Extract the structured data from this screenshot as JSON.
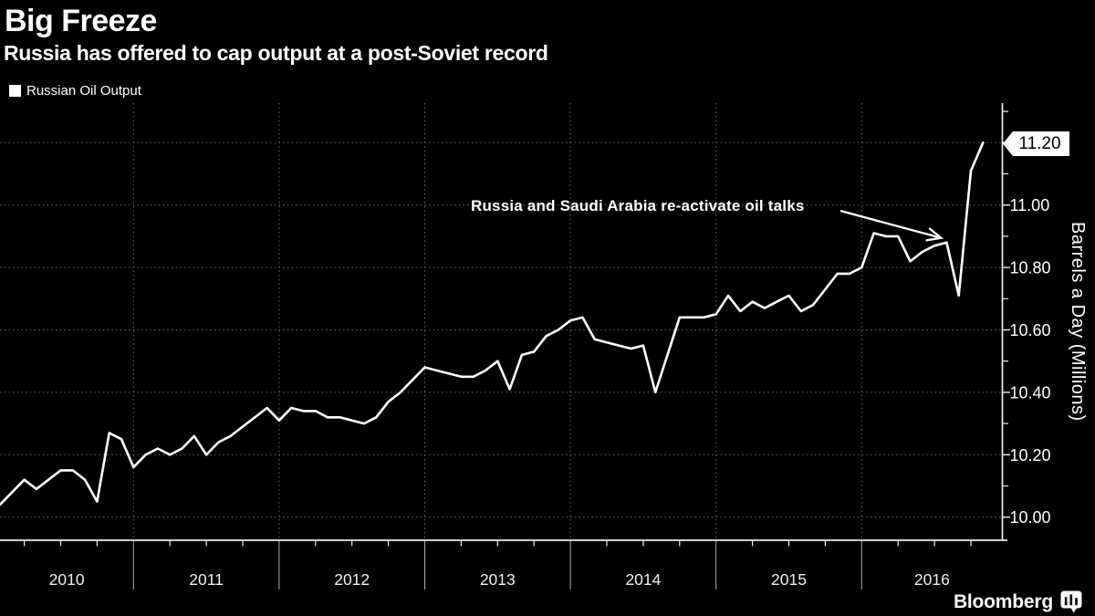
{
  "header": {
    "title": "Big Freeze",
    "subtitle": "Russia has offered to cap output at a post-Soviet record"
  },
  "legend": {
    "label": "Russian Oil Output"
  },
  "annotation": {
    "text": "Russia and Saudi Arabia re-activate oil talks",
    "points_to": {
      "month": "2016-08",
      "value": 10.88
    }
  },
  "badge": {
    "value": "11.20"
  },
  "branding": {
    "logo": "Bloomberg"
  },
  "colors": {
    "background": "#000000",
    "line": "#ffffff",
    "text": "#ffffff",
    "grid": "#6a6a6a",
    "axis": "#ededed",
    "separator": "#adadad",
    "badge_bg": "#ffffff",
    "badge_text": "#000000"
  },
  "chart_data": {
    "type": "line",
    "title": "Big Freeze",
    "xlabel": "",
    "ylabel": "Barrels a Day (Millions)",
    "ylim": [
      9.93,
      11.31
    ],
    "xlim": [
      "2010-02",
      "2016-11"
    ],
    "grid": "dotted",
    "legend_position": "top-left",
    "x_categories": [
      2010,
      2011,
      2012,
      2013,
      2014,
      2015,
      2016
    ],
    "y_ticks": [
      10.0,
      10.2,
      10.4,
      10.6,
      10.8,
      11.0,
      11.2
    ],
    "last_value_label": "11.20",
    "series": [
      {
        "name": "Russian Oil Output",
        "points": [
          [
            "2010-02",
            10.04
          ],
          [
            "2010-03",
            10.08
          ],
          [
            "2010-04",
            10.12
          ],
          [
            "2010-05",
            10.09
          ],
          [
            "2010-06",
            10.12
          ],
          [
            "2010-07",
            10.15
          ],
          [
            "2010-08",
            10.15
          ],
          [
            "2010-09",
            10.12
          ],
          [
            "2010-10",
            10.05
          ],
          [
            "2010-11",
            10.27
          ],
          [
            "2010-12",
            10.25
          ],
          [
            "2011-01",
            10.16
          ],
          [
            "2011-02",
            10.2
          ],
          [
            "2011-03",
            10.22
          ],
          [
            "2011-04",
            10.2
          ],
          [
            "2011-05",
            10.22
          ],
          [
            "2011-06",
            10.26
          ],
          [
            "2011-07",
            10.2
          ],
          [
            "2011-08",
            10.24
          ],
          [
            "2011-09",
            10.26
          ],
          [
            "2011-10",
            10.29
          ],
          [
            "2011-11",
            10.32
          ],
          [
            "2011-12",
            10.35
          ],
          [
            "2012-01",
            10.31
          ],
          [
            "2012-02",
            10.35
          ],
          [
            "2012-03",
            10.34
          ],
          [
            "2012-04",
            10.34
          ],
          [
            "2012-05",
            10.32
          ],
          [
            "2012-06",
            10.32
          ],
          [
            "2012-07",
            10.31
          ],
          [
            "2012-08",
            10.3
          ],
          [
            "2012-09",
            10.32
          ],
          [
            "2012-10",
            10.37
          ],
          [
            "2012-11",
            10.4
          ],
          [
            "2012-12",
            10.44
          ],
          [
            "2013-01",
            10.48
          ],
          [
            "2013-02",
            10.47
          ],
          [
            "2013-03",
            10.46
          ],
          [
            "2013-04",
            10.45
          ],
          [
            "2013-05",
            10.45
          ],
          [
            "2013-06",
            10.47
          ],
          [
            "2013-07",
            10.5
          ],
          [
            "2013-08",
            10.41
          ],
          [
            "2013-09",
            10.52
          ],
          [
            "2013-10",
            10.53
          ],
          [
            "2013-11",
            10.58
          ],
          [
            "2013-12",
            10.6
          ],
          [
            "2014-01",
            10.63
          ],
          [
            "2014-02",
            10.64
          ],
          [
            "2014-03",
            10.57
          ],
          [
            "2014-04",
            10.56
          ],
          [
            "2014-05",
            10.55
          ],
          [
            "2014-06",
            10.54
          ],
          [
            "2014-07",
            10.55
          ],
          [
            "2014-08",
            10.4
          ],
          [
            "2014-09",
            10.52
          ],
          [
            "2014-10",
            10.64
          ],
          [
            "2014-11",
            10.64
          ],
          [
            "2014-12",
            10.64
          ],
          [
            "2015-01",
            10.65
          ],
          [
            "2015-02",
            10.71
          ],
          [
            "2015-03",
            10.66
          ],
          [
            "2015-04",
            10.69
          ],
          [
            "2015-05",
            10.67
          ],
          [
            "2015-06",
            10.69
          ],
          [
            "2015-07",
            10.71
          ],
          [
            "2015-08",
            10.66
          ],
          [
            "2015-09",
            10.68
          ],
          [
            "2015-10",
            10.73
          ],
          [
            "2015-11",
            10.78
          ],
          [
            "2015-12",
            10.78
          ],
          [
            "2016-01",
            10.8
          ],
          [
            "2016-02",
            10.91
          ],
          [
            "2016-03",
            10.9
          ],
          [
            "2016-04",
            10.9
          ],
          [
            "2016-05",
            10.82
          ],
          [
            "2016-06",
            10.85
          ],
          [
            "2016-07",
            10.87
          ],
          [
            "2016-08",
            10.88
          ],
          [
            "2016-09",
            10.71
          ],
          [
            "2016-10",
            11.11
          ],
          [
            "2016-11",
            11.2
          ]
        ]
      }
    ]
  }
}
